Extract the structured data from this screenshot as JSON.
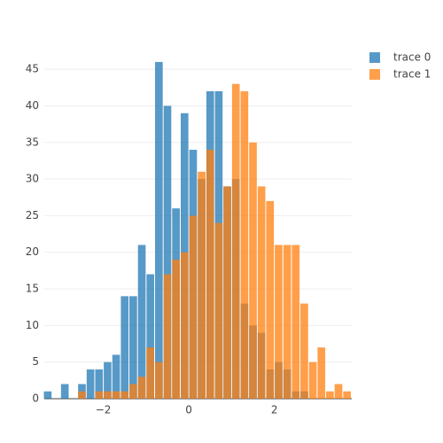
{
  "chart_data": {
    "type": "histogram",
    "bins": [
      -3.4,
      -3.2,
      -3.0,
      -2.8,
      -2.6,
      -2.4,
      -2.2,
      -2.0,
      -1.8,
      -1.6,
      -1.4,
      -1.2,
      -1.0,
      -0.8,
      -0.6,
      -0.4,
      -0.2,
      0.0,
      0.2,
      0.4,
      0.6,
      0.8,
      1.0,
      1.2,
      1.4,
      1.6,
      1.8,
      2.0,
      2.2,
      2.4,
      2.6,
      2.8,
      3.0,
      3.2,
      3.4,
      3.6,
      3.8
    ],
    "series": [
      {
        "name": "trace 0",
        "color": "#1f77b4",
        "values": [
          1,
          0,
          2,
          0,
          2,
          4,
          4,
          5,
          6,
          14,
          14,
          21,
          17,
          46,
          40,
          26,
          39,
          34,
          30,
          42,
          42,
          29,
          30,
          13,
          10,
          9,
          4,
          5,
          4,
          1,
          1,
          0,
          0,
          0,
          0,
          0
        ]
      },
      {
        "name": "trace 1",
        "color": "#ff7f0e",
        "values": [
          0,
          0,
          0,
          0,
          1,
          0,
          1,
          1,
          1,
          1,
          2,
          3,
          7,
          5,
          17,
          19,
          20,
          25,
          31,
          34,
          24,
          29,
          43,
          42,
          35,
          29,
          27,
          21,
          21,
          21,
          13,
          5,
          7,
          1,
          2,
          1
        ]
      }
    ],
    "opacity": 0.75,
    "xlim": [
      -3.38,
      3.81
    ],
    "xticks": [
      {
        "value": -2,
        "label": "−2"
      },
      0,
      2
    ],
    "ylim": [
      0,
      47.2
    ],
    "yticks": [
      0,
      5,
      10,
      15,
      20,
      25,
      30,
      35,
      40,
      45
    ],
    "grid": true,
    "legend": "outside-right"
  }
}
